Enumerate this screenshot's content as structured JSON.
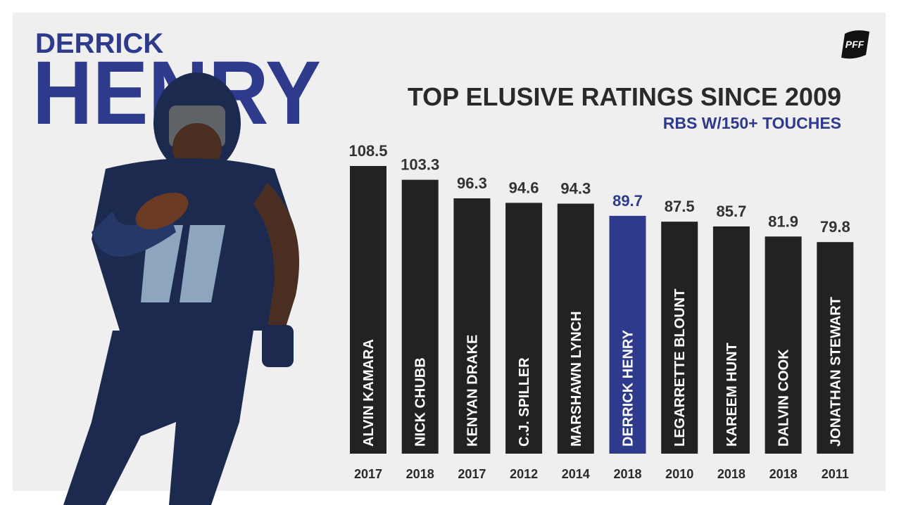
{
  "chart_data": {
    "type": "bar",
    "headline": [
      "DERRICK",
      "HENRY"
    ],
    "logo": "PFF",
    "title": "TOP ELUSIVE RATINGS SINCE 2009",
    "subtitle": "RBS W/150+ TOUCHES",
    "categories": [
      "ALVIN KAMARA",
      "NICK CHUBB",
      "KENYAN DRAKE",
      "C.J. SPILLER",
      "MARSHAWN LYNCH",
      "DERRICK HENRY",
      "LEGARRETTE BLOUNT",
      "KAREEM HUNT",
      "DALVIN COOK",
      "JONATHAN STEWART"
    ],
    "years": [
      "2017",
      "2018",
      "2017",
      "2012",
      "2014",
      "2018",
      "2010",
      "2018",
      "2018",
      "2011"
    ],
    "values": [
      108.5,
      103.3,
      96.3,
      94.6,
      94.3,
      89.7,
      87.5,
      85.7,
      81.9,
      79.8
    ],
    "colors": [
      "#222222",
      "#222222",
      "#222222",
      "#222222",
      "#222222",
      "#2e3a8c",
      "#222222",
      "#222222",
      "#222222",
      "#222222"
    ],
    "value_colors": [
      "#333333",
      "#333333",
      "#333333",
      "#333333",
      "#333333",
      "#2e3a8c",
      "#333333",
      "#333333",
      "#333333",
      "#333333"
    ]
  }
}
